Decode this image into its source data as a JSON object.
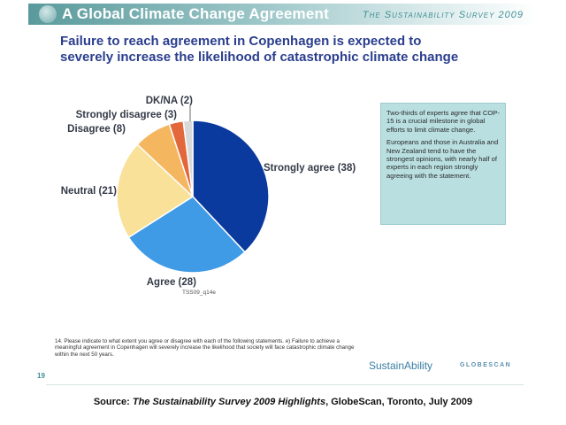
{
  "header": {
    "title": "A Global Climate Change Agreement",
    "survey": "The Sustainability Survey 2009"
  },
  "headline": {
    "line1": "Failure to reach agreement in Copenhagen is expected to",
    "line2": "severely increase the likelihood of catastrophic climate change"
  },
  "colors": {
    "strongly_agree": "#0a3a9e",
    "agree": "#3f9be6",
    "neutral": "#f9e199",
    "disagree": "#f5b660",
    "strongly_disagree": "#e2673a",
    "dkna": "#d9d9d9"
  },
  "chart_data": {
    "type": "pie",
    "categories": [
      "Strongly agree",
      "Agree",
      "Neutral",
      "Disagree",
      "Strongly disagree",
      "DK/NA"
    ],
    "values": [
      38,
      28,
      21,
      8,
      3,
      2
    ],
    "labels": [
      "Strongly agree (38)",
      "Agree (28)",
      "Neutral (21)",
      "Disagree (8)",
      "Strongly disagree (3)",
      "DK/NA (2)"
    ],
    "start": "12 o'clock",
    "direction": "clockwise",
    "code": "TSS09_q14e"
  },
  "callout": {
    "p1": "Two-thirds of experts agree that COP-15 is a crucial milestone in global efforts to limit climate change.",
    "p2": "Europeans and those in Australia and New Zealand tend to have the strongest opinions, with nearly half of experts in each region strongly agreeing with the statement."
  },
  "footnote": "14. Please indicate to what extent you agree or disagree with each of the following statements. e) Failure to achieve a meaningful agreement in Copenhagen will severely increase the likelihood that society will face catastrophic climate change within the next 50 years.",
  "page_number": "19",
  "logos": {
    "sustainability": "SustainAbility",
    "globescan": "GLOBESCAN"
  },
  "source": {
    "prefix": "Source: ",
    "title": "The Sustainability Survey 2009 Highlights",
    "suffix": ", GlobeScan, Toronto, July 2009"
  }
}
